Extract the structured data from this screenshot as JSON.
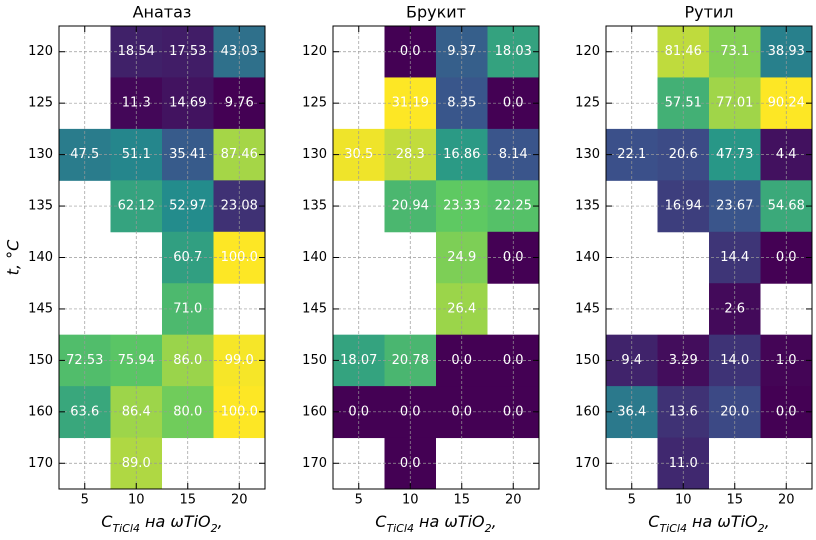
{
  "chart_data": [
    {
      "type": "heatmap",
      "title": "Анатаз",
      "colormap": "viridis",
      "grid": true,
      "x": [
        5,
        10,
        15,
        20
      ],
      "xlim": [
        2.5,
        22.5
      ],
      "xticks": [
        5,
        10,
        15,
        20
      ],
      "y": [
        "120",
        "125",
        "130",
        "135",
        "140",
        "145",
        "150",
        "160",
        "170"
      ],
      "xlabel": [
        "C",
        "TiCl4",
        " на ωTiO",
        "2",
        ","
      ],
      "ylabel": "t, °C",
      "values": [
        [
          null,
          18.54,
          17.53,
          43.03
        ],
        [
          null,
          11.3,
          14.69,
          9.76
        ],
        [
          47.5,
          51.1,
          35.41,
          87.46
        ],
        [
          null,
          62.12,
          52.97,
          23.08
        ],
        [
          null,
          null,
          60.7,
          100
        ],
        [
          null,
          null,
          71,
          null
        ],
        [
          72.53,
          75.94,
          86,
          99
        ],
        [
          63.6,
          86.4,
          80,
          100
        ],
        [
          null,
          89,
          null,
          null
        ]
      ],
      "value_labels": [
        [
          null,
          "18.54",
          "17.53",
          "43.03"
        ],
        [
          null,
          "11.3",
          "14.69",
          "9.76"
        ],
        [
          "47.5",
          "51.1",
          "35.41",
          "87.46"
        ],
        [
          null,
          "62.12",
          "52.97",
          "23.08"
        ],
        [
          null,
          null,
          "60.7",
          "100.0"
        ],
        [
          null,
          null,
          "71.0",
          null
        ],
        [
          "72.53",
          "75.94",
          "86.0",
          "99.0"
        ],
        [
          "63.6",
          "86.4",
          "80.0",
          "100.0"
        ],
        [
          null,
          "89.0",
          null,
          null
        ]
      ]
    },
    {
      "type": "heatmap",
      "title": "Брукит",
      "colormap": "viridis",
      "grid": true,
      "x": [
        5,
        10,
        15,
        20
      ],
      "xlim": [
        2.5,
        22.5
      ],
      "xticks": [
        5,
        10,
        15,
        20
      ],
      "y": [
        "120",
        "125",
        "130",
        "135",
        "140",
        "145",
        "150",
        "160",
        "170"
      ],
      "xlabel": [
        "C",
        "TiCl4",
        " на ωTiO",
        "2",
        ","
      ],
      "values": [
        [
          null,
          0,
          9.37,
          18.03
        ],
        [
          null,
          31.19,
          8.35,
          0
        ],
        [
          30.5,
          28.3,
          16.86,
          8.14
        ],
        [
          null,
          20.94,
          23.33,
          22.25
        ],
        [
          null,
          null,
          24.9,
          0
        ],
        [
          null,
          null,
          26.4,
          null
        ],
        [
          18.07,
          20.78,
          0,
          0
        ],
        [
          0,
          0,
          0,
          0
        ],
        [
          null,
          0,
          null,
          null
        ]
      ],
      "value_labels": [
        [
          null,
          "0.0",
          "9.37",
          "18.03"
        ],
        [
          null,
          "31.19",
          "8.35",
          "0.0"
        ],
        [
          "30.5",
          "28.3",
          "16.86",
          "8.14"
        ],
        [
          null,
          "20.94",
          "23.33",
          "22.25"
        ],
        [
          null,
          null,
          "24.9",
          "0.0"
        ],
        [
          null,
          null,
          "26.4",
          null
        ],
        [
          "18.07",
          "20.78",
          "0.0",
          "0.0"
        ],
        [
          "0.0",
          "0.0",
          "0.0",
          "0.0"
        ],
        [
          null,
          "0.0",
          null,
          null
        ]
      ]
    },
    {
      "type": "heatmap",
      "title": "Рутил",
      "colormap": "viridis",
      "grid": true,
      "x": [
        5,
        10,
        15,
        20
      ],
      "xlim": [
        2.5,
        22.5
      ],
      "xticks": [
        5,
        10,
        15,
        20
      ],
      "y": [
        "120",
        "125",
        "130",
        "135",
        "140",
        "145",
        "150",
        "160",
        "170"
      ],
      "xlabel": [
        "C",
        "TiCl4",
        " на ωTiO",
        "2",
        ","
      ],
      "values": [
        [
          null,
          81.46,
          73.1,
          38.93
        ],
        [
          null,
          57.51,
          77.01,
          90.24
        ],
        [
          22.1,
          20.6,
          47.73,
          4.4
        ],
        [
          null,
          16.94,
          23.67,
          54.68
        ],
        [
          null,
          null,
          14.4,
          0
        ],
        [
          null,
          null,
          2.6,
          null
        ],
        [
          9.4,
          3.29,
          14,
          1
        ],
        [
          36.4,
          13.6,
          20,
          0
        ],
        [
          null,
          11,
          null,
          null
        ]
      ],
      "value_labels": [
        [
          null,
          "81.46",
          "73.1",
          "38.93"
        ],
        [
          null,
          "57.51",
          "77.01",
          "90.24"
        ],
        [
          "22.1",
          "20.6",
          "47.73",
          "4.4"
        ],
        [
          null,
          "16.94",
          "23.67",
          "54.68"
        ],
        [
          null,
          null,
          "14.4",
          "0.0"
        ],
        [
          null,
          null,
          "2.6",
          null
        ],
        [
          "9.4",
          "3.29",
          "14.0",
          "1.0"
        ],
        [
          "36.4",
          "13.6",
          "20.0",
          "0.0"
        ],
        [
          null,
          "11.0",
          null,
          null
        ]
      ]
    }
  ]
}
